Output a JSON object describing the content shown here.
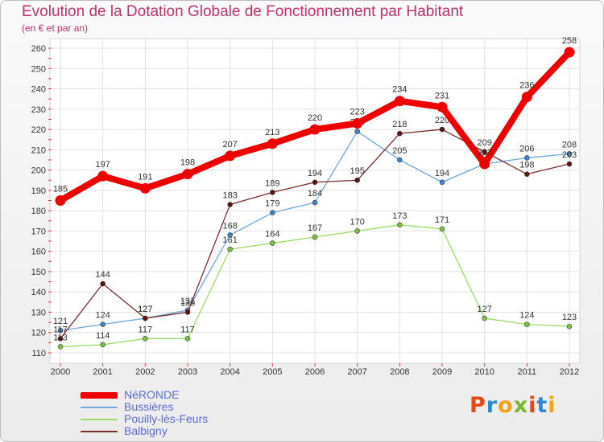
{
  "header": {
    "title": "Evolution de la Dotation Globale de Fonctionnement par Habitant",
    "subtitle": "(en € et par an)"
  },
  "brand": {
    "logo_letters": [
      "P",
      "r",
      "o",
      "x",
      "i",
      "t",
      "i"
    ],
    "logo_colors": [
      "#e24a1a",
      "#2e88c9",
      "#f2a414",
      "#7ab82b",
      "#e24a1a",
      "#2e88c9",
      "#f2a414"
    ]
  },
  "chart_data": {
    "type": "line",
    "title": "Evolution de la Dotation Globale de Fonctionnement par Habitant",
    "subtitle": "(en € et par an)",
    "xlabel": "",
    "ylabel": "",
    "ylim": [
      110,
      260
    ],
    "yticks": [
      110,
      120,
      130,
      140,
      150,
      160,
      170,
      180,
      190,
      200,
      210,
      220,
      230,
      240,
      250,
      260
    ],
    "grid": true,
    "legend_position": "bottom-left",
    "categories": [
      "2000",
      "2001",
      "2002",
      "2003",
      "2004",
      "2005",
      "2006",
      "2007",
      "2008",
      "2009",
      "2010",
      "2011",
      "2012"
    ],
    "series": [
      {
        "name": "Pouilly-lès-Feurs",
        "color": "#99dd66",
        "marker": "#7bc142",
        "values": [
          113,
          114,
          117,
          117,
          161,
          164,
          167,
          170,
          173,
          171,
          127,
          124,
          123
        ]
      },
      {
        "name": "Bussières",
        "color": "#6fa8dc",
        "marker": "#3d85c6",
        "values": [
          121,
          124,
          127,
          131,
          168,
          179,
          184,
          219,
          205,
          194,
          203,
          206,
          208
        ]
      },
      {
        "name": "Balbigny",
        "color": "#7b2e2e",
        "marker": "#5a1414",
        "values": [
          117,
          144,
          127,
          130,
          183,
          189,
          194,
          195,
          218,
          220,
          209,
          198,
          203
        ]
      },
      {
        "name": "NéRONDE",
        "color": "#ee0000",
        "marker": "#ee0000",
        "values": [
          185,
          197,
          191,
          198,
          207,
          213,
          220,
          223,
          234,
          231,
          203,
          236,
          258
        ]
      }
    ],
    "legend": [
      "NéRONDE",
      "Bussières",
      "Pouilly-lès-Feurs",
      "Balbigny"
    ]
  }
}
